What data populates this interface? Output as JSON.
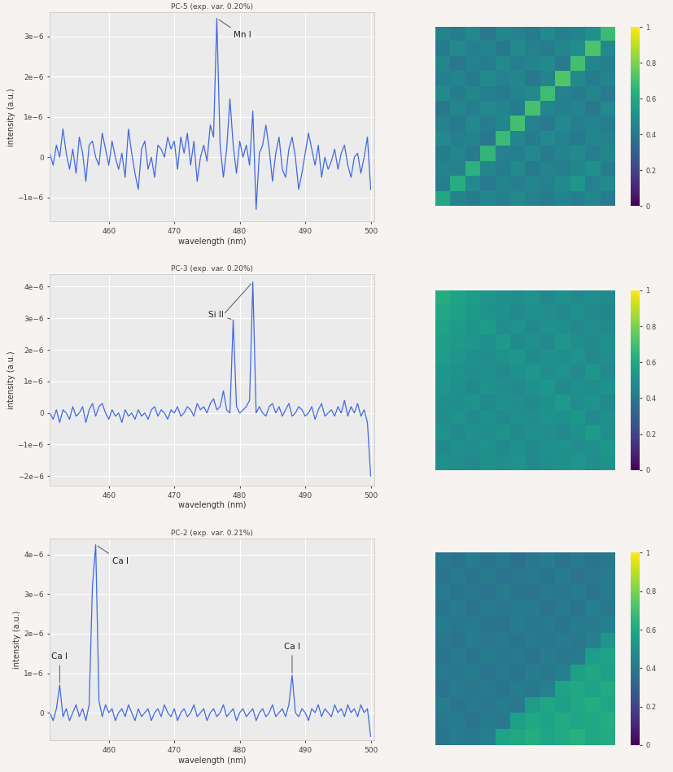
{
  "chart_data": [
    {
      "type": "line",
      "title": "PC-5 (exp. var. 0.20%)",
      "x_label": "wavelength (nm)",
      "y_label": "intensity (a.u.)",
      "color": "#4169e1",
      "grid": true,
      "x": [
        451,
        451.5,
        452,
        452.5,
        453,
        453.5,
        454,
        454.5,
        455,
        455.5,
        456,
        456.5,
        457,
        457.5,
        458,
        458.5,
        459,
        459.5,
        460,
        460.5,
        461,
        461.5,
        462,
        462.5,
        463,
        463.5,
        464,
        464.5,
        465,
        465.5,
        466,
        466.5,
        467,
        467.5,
        468,
        468.5,
        469,
        469.5,
        470,
        470.5,
        471,
        471.5,
        472,
        472.5,
        473,
        473.5,
        474,
        474.5,
        475,
        475.5,
        476,
        476.5,
        477,
        477.5,
        478,
        478.5,
        479,
        479.5,
        480,
        480.5,
        481,
        481.5,
        482,
        482.5,
        483,
        483.5,
        484,
        484.5,
        485,
        485.5,
        486,
        486.5,
        487,
        487.5,
        488,
        488.5,
        489,
        489.5,
        490,
        490.5,
        491,
        491.5,
        492,
        492.5,
        493,
        493.5,
        494,
        494.5,
        495,
        495.5,
        496,
        496.5,
        497,
        497.5,
        498,
        498.5,
        499,
        499.5,
        500
      ],
      "values": [
        1e-07,
        -2e-07,
        3e-07,
        0,
        7e-07,
        1e-07,
        -3e-07,
        2e-07,
        -4e-07,
        5e-07,
        1e-07,
        -6e-07,
        3e-07,
        4e-07,
        0,
        -2e-07,
        6e-07,
        2e-07,
        -2e-07,
        4e-07,
        0,
        -3e-07,
        1e-07,
        -5e-07,
        7e-07,
        1e-07,
        -4e-07,
        -8e-07,
        2e-07,
        4e-07,
        -3e-07,
        0,
        -5e-07,
        3e-07,
        2e-07,
        0,
        5e-07,
        2e-07,
        4e-07,
        -3e-07,
        5e-07,
        1e-07,
        6e-07,
        -2e-07,
        4e-07,
        -6e-07,
        0,
        3e-07,
        -1e-07,
        8e-07,
        5e-07,
        3.45e-06,
        3e-07,
        -5e-07,
        2e-07,
        1.45e-06,
        3e-07,
        -4e-07,
        4e-07,
        0,
        3e-07,
        -2e-07,
        1.15e-06,
        -1.3e-06,
        1e-07,
        3e-07,
        8e-07,
        2e-07,
        -6e-07,
        1e-07,
        5e-07,
        -3e-07,
        -5e-07,
        2e-07,
        5e-07,
        0,
        -8e-07,
        -4e-07,
        1e-07,
        6e-07,
        2e-07,
        -2e-07,
        3e-07,
        -5e-07,
        0,
        -3e-07,
        -1e-07,
        2e-07,
        -3e-07,
        1e-07,
        3e-07,
        -2e-07,
        -5e-07,
        0,
        1e-07,
        -4e-07,
        0,
        5e-07,
        -8e-07
      ],
      "xlim": [
        451,
        500.5
      ],
      "xticks": [
        460,
        470,
        480,
        490,
        500
      ],
      "ylim": [
        -1.6e-06,
        3.6e-06
      ],
      "yticks": [
        {
          "value": -1e-06,
          "label": "−1e−6"
        },
        0,
        {
          "value": 1e-06,
          "label": "1e−6"
        },
        {
          "value": 2e-06,
          "label": "2e−6"
        },
        {
          "value": 3e-06,
          "label": "3e−6"
        }
      ],
      "annotations": [
        {
          "text": "Mn I",
          "x": [
            476.5
          ]
        }
      ]
    },
    {
      "type": "heatmap",
      "tick_labels": false,
      "color_range": [
        0,
        1
      ],
      "color_ticks": [
        0,
        0.2,
        0.4,
        0.6,
        0.8,
        1
      ],
      "cells": [
        [
          0.45,
          0.42,
          0.48,
          0.4,
          0.46,
          0.44,
          0.41,
          0.47,
          0.43,
          0.45,
          0.5,
          0.68
        ],
        [
          0.41,
          0.47,
          0.43,
          0.45,
          0.4,
          0.48,
          0.44,
          0.42,
          0.46,
          0.49,
          0.72,
          0.47
        ],
        [
          0.46,
          0.4,
          0.44,
          0.42,
          0.47,
          0.43,
          0.45,
          0.48,
          0.41,
          0.7,
          0.46,
          0.43
        ],
        [
          0.43,
          0.45,
          0.41,
          0.48,
          0.44,
          0.46,
          0.4,
          0.45,
          0.73,
          0.47,
          0.42,
          0.45
        ],
        [
          0.48,
          0.42,
          0.46,
          0.43,
          0.41,
          0.45,
          0.47,
          0.69,
          0.44,
          0.42,
          0.46,
          0.41
        ],
        [
          0.4,
          0.46,
          0.43,
          0.47,
          0.45,
          0.42,
          0.71,
          0.46,
          0.43,
          0.45,
          0.4,
          0.47
        ],
        [
          0.44,
          0.41,
          0.48,
          0.42,
          0.46,
          0.7,
          0.44,
          0.41,
          0.47,
          0.43,
          0.45,
          0.42
        ],
        [
          0.47,
          0.43,
          0.45,
          0.4,
          0.68,
          0.46,
          0.42,
          0.48,
          0.44,
          0.41,
          0.46,
          0.44
        ],
        [
          0.42,
          0.46,
          0.41,
          0.66,
          0.44,
          0.43,
          0.47,
          0.42,
          0.45,
          0.48,
          0.43,
          0.46
        ],
        [
          0.45,
          0.44,
          0.64,
          0.46,
          0.42,
          0.48,
          0.41,
          0.45,
          0.43,
          0.46,
          0.5,
          0.42
        ],
        [
          0.43,
          0.62,
          0.47,
          0.41,
          0.45,
          0.43,
          0.46,
          0.44,
          0.48,
          0.52,
          0.44,
          0.47
        ],
        [
          0.6,
          0.45,
          0.42,
          0.46,
          0.43,
          0.47,
          0.44,
          0.42,
          0.45,
          0.43,
          0.46,
          0.41
        ]
      ]
    },
    {
      "type": "line",
      "title": "PC-3 (exp. var. 0.20%)",
      "x_label": "wavelength (nm)",
      "y_label": "intensity (a.u.)",
      "color": "#4169e1",
      "grid": true,
      "x": [
        451,
        451.5,
        452,
        452.5,
        453,
        453.5,
        454,
        454.5,
        455,
        455.5,
        456,
        456.5,
        457,
        457.5,
        458,
        458.5,
        459,
        459.5,
        460,
        460.5,
        461,
        461.5,
        462,
        462.5,
        463,
        463.5,
        464,
        464.5,
        465,
        465.5,
        466,
        466.5,
        467,
        467.5,
        468,
        468.5,
        469,
        469.5,
        470,
        470.5,
        471,
        471.5,
        472,
        472.5,
        473,
        473.5,
        474,
        474.5,
        475,
        475.5,
        476,
        476.5,
        477,
        477.5,
        478,
        478.5,
        479,
        479.5,
        480,
        480.5,
        481,
        481.5,
        482,
        482.5,
        483,
        483.5,
        484,
        484.5,
        485,
        485.5,
        486,
        486.5,
        487,
        487.5,
        488,
        488.5,
        489,
        489.5,
        490,
        490.5,
        491,
        491.5,
        492,
        492.5,
        493,
        493.5,
        494,
        494.5,
        495,
        495.5,
        496,
        496.5,
        497,
        497.5,
        498,
        498.5,
        499,
        499.5,
        500
      ],
      "values": [
        0,
        -2e-07,
        1e-07,
        -3e-07,
        1e-07,
        0,
        -2e-07,
        2e-07,
        -1e-07,
        0,
        2e-07,
        -3e-07,
        1e-07,
        3e-07,
        -1e-07,
        2e-07,
        3e-07,
        0,
        -2e-07,
        1e-07,
        -1e-07,
        0,
        -3e-07,
        1e-07,
        -1e-07,
        0,
        -2e-07,
        1e-07,
        -1e-07,
        0,
        -2e-07,
        1e-07,
        2e-07,
        -1e-07,
        1e-07,
        0,
        -2e-07,
        1e-07,
        0,
        2e-07,
        -1e-07,
        0,
        2e-07,
        1e-07,
        -1e-07,
        3e-07,
        1e-07,
        2e-07,
        0,
        3e-07,
        4.5e-07,
        1e-07,
        2e-07,
        7e-07,
        1e-07,
        0,
        2.95e-06,
        2e-07,
        0,
        1e-07,
        2e-07,
        4e-07,
        4.15e-06,
        0,
        2e-07,
        0,
        -1e-07,
        2e-07,
        3e-07,
        0,
        2e-07,
        -1e-07,
        1e-07,
        3e-07,
        -1e-07,
        0,
        2e-07,
        1e-07,
        -1e-07,
        0,
        2e-07,
        -2e-07,
        1e-07,
        3e-07,
        -1e-07,
        0,
        1e-07,
        -1e-07,
        2e-07,
        0,
        4e-07,
        -1e-07,
        2e-07,
        0,
        3e-07,
        -1e-07,
        1e-07,
        -3e-07,
        -2e-06
      ],
      "xlim": [
        451,
        500.5
      ],
      "xticks": [
        460,
        470,
        480,
        490,
        500
      ],
      "ylim": [
        -2.3e-06,
        4.4e-06
      ],
      "yticks": [
        {
          "value": -2e-06,
          "label": "−2e−6"
        },
        {
          "value": -1e-06,
          "label": "−1e−6"
        },
        0,
        {
          "value": 1e-06,
          "label": "1e−6"
        },
        {
          "value": 2e-06,
          "label": "2e−6"
        },
        {
          "value": 3e-06,
          "label": "3e−6"
        },
        {
          "value": 4e-06,
          "label": "4e−6"
        }
      ],
      "annotations": [
        {
          "text": "Si II",
          "x": [
            479,
            482
          ]
        }
      ]
    },
    {
      "type": "heatmap",
      "tick_labels": false,
      "color_range": [
        0,
        1
      ],
      "color_ticks": [
        0,
        0.2,
        0.4,
        0.6,
        0.8,
        1
      ],
      "cells": [
        [
          0.62,
          0.58,
          0.55,
          0.52,
          0.5,
          0.49,
          0.51,
          0.48,
          0.5,
          0.47,
          0.49,
          0.48
        ],
        [
          0.6,
          0.57,
          0.54,
          0.51,
          0.5,
          0.48,
          0.5,
          0.49,
          0.47,
          0.5,
          0.48,
          0.46
        ],
        [
          0.58,
          0.55,
          0.53,
          0.55,
          0.49,
          0.51,
          0.48,
          0.5,
          0.49,
          0.47,
          0.49,
          0.48
        ],
        [
          0.56,
          0.54,
          0.52,
          0.5,
          0.54,
          0.48,
          0.5,
          0.47,
          0.52,
          0.49,
          0.48,
          0.5
        ],
        [
          0.55,
          0.52,
          0.5,
          0.49,
          0.51,
          0.53,
          0.48,
          0.5,
          0.49,
          0.51,
          0.47,
          0.49
        ],
        [
          0.53,
          0.51,
          0.49,
          0.5,
          0.48,
          0.5,
          0.52,
          0.49,
          0.51,
          0.48,
          0.53,
          0.47
        ],
        [
          0.52,
          0.5,
          0.48,
          0.51,
          0.49,
          0.47,
          0.5,
          0.53,
          0.48,
          0.5,
          0.49,
          0.51
        ],
        [
          0.5,
          0.49,
          0.51,
          0.48,
          0.5,
          0.49,
          0.48,
          0.5,
          0.54,
          0.49,
          0.51,
          0.48
        ],
        [
          0.49,
          0.51,
          0.48,
          0.5,
          0.47,
          0.5,
          0.49,
          0.51,
          0.5,
          0.53,
          0.48,
          0.5
        ],
        [
          0.51,
          0.48,
          0.5,
          0.49,
          0.51,
          0.48,
          0.5,
          0.49,
          0.48,
          0.5,
          0.54,
          0.49
        ],
        [
          0.48,
          0.5,
          0.49,
          0.51,
          0.48,
          0.5,
          0.47,
          0.5,
          0.51,
          0.49,
          0.5,
          0.53
        ],
        [
          0.5,
          0.49,
          0.47,
          0.5,
          0.49,
          0.51,
          0.48,
          0.49,
          0.5,
          0.52,
          0.49,
          0.51
        ]
      ]
    },
    {
      "type": "line",
      "title": "PC-2 (exp. var. 0.21%)",
      "x_label": "wavelength (nm)",
      "y_label": "intensity (a.u.)",
      "color": "#4169e1",
      "grid": true,
      "x": [
        451,
        451.5,
        452,
        452.5,
        453,
        453.5,
        454,
        454.5,
        455,
        455.5,
        456,
        456.5,
        457,
        457.5,
        458,
        458.5,
        459,
        459.5,
        460,
        460.5,
        461,
        461.5,
        462,
        462.5,
        463,
        463.5,
        464,
        464.5,
        465,
        465.5,
        466,
        466.5,
        467,
        467.5,
        468,
        468.5,
        469,
        469.5,
        470,
        470.5,
        471,
        471.5,
        472,
        472.5,
        473,
        473.5,
        474,
        474.5,
        475,
        475.5,
        476,
        476.5,
        477,
        477.5,
        478,
        478.5,
        479,
        479.5,
        480,
        480.5,
        481,
        481.5,
        482,
        482.5,
        483,
        483.5,
        484,
        484.5,
        485,
        485.5,
        486,
        486.5,
        487,
        487.5,
        488,
        488.5,
        489,
        489.5,
        490,
        490.5,
        491,
        491.5,
        492,
        492.5,
        493,
        493.5,
        494,
        494.5,
        495,
        495.5,
        496,
        496.5,
        497,
        497.5,
        498,
        498.5,
        499,
        499.5,
        500
      ],
      "values": [
        0,
        -2e-07,
        1e-07,
        7e-07,
        -1e-07,
        1e-07,
        -2e-07,
        0,
        2e-07,
        -1e-07,
        1e-07,
        -2e-07,
        2e-07,
        3.2e-06,
        4.25e-06,
        3e-07,
        -1e-07,
        2e-07,
        0,
        1e-07,
        -2e-07,
        0,
        1e-07,
        -1e-07,
        2e-07,
        0,
        -2e-07,
        1e-07,
        -1e-07,
        0,
        1e-07,
        -2e-07,
        0,
        1e-07,
        -1e-07,
        2e-07,
        0,
        -1e-07,
        1e-07,
        -2e-07,
        0,
        1e-07,
        -1e-07,
        0,
        2e-07,
        -1e-07,
        0,
        1e-07,
        -2e-07,
        0,
        1e-07,
        -1e-07,
        0,
        2e-07,
        -1e-07,
        0,
        1e-07,
        -2e-07,
        0,
        1e-07,
        -1e-07,
        0,
        1e-07,
        -2e-07,
        0,
        1e-07,
        -1e-07,
        0,
        2e-07,
        -1e-07,
        0,
        1e-07,
        -1e-07,
        2e-07,
        9.5e-07,
        0,
        -1e-07,
        1e-07,
        0,
        -2e-07,
        1e-07,
        0,
        2e-07,
        -1e-07,
        1e-07,
        0,
        -1e-07,
        2e-07,
        0,
        1e-07,
        -1e-07,
        2e-07,
        0,
        1e-07,
        -1e-07,
        2e-07,
        0,
        1e-07,
        -6e-07
      ],
      "xlim": [
        451,
        500.5
      ],
      "xticks": [
        460,
        470,
        480,
        490,
        500
      ],
      "ylim": [
        -7e-07,
        4.4e-06
      ],
      "yticks": [
        0,
        {
          "value": 1e-06,
          "label": "1e−6"
        },
        {
          "value": 2e-06,
          "label": "2e−6"
        },
        {
          "value": 3e-06,
          "label": "3e−6"
        },
        {
          "value": 4e-06,
          "label": "4e−6"
        }
      ],
      "annotations": [
        {
          "text": "Ca I",
          "x": [
            452.5
          ]
        },
        {
          "text": "Ca I",
          "x": [
            458
          ]
        },
        {
          "text": "Ca I",
          "x": [
            488
          ]
        }
      ]
    },
    {
      "type": "heatmap",
      "tick_labels": false,
      "color_range": [
        0,
        1
      ],
      "color_ticks": [
        0,
        0.2,
        0.4,
        0.6,
        0.8,
        1
      ],
      "cells": [
        [
          0.4,
          0.38,
          0.42,
          0.39,
          0.41,
          0.37,
          0.4,
          0.42,
          0.38,
          0.41,
          0.39,
          0.4
        ],
        [
          0.38,
          0.41,
          0.39,
          0.42,
          0.38,
          0.4,
          0.41,
          0.39,
          0.42,
          0.38,
          0.4,
          0.41
        ],
        [
          0.41,
          0.39,
          0.4,
          0.38,
          0.42,
          0.39,
          0.38,
          0.41,
          0.4,
          0.42,
          0.39,
          0.42
        ],
        [
          0.39,
          0.42,
          0.38,
          0.41,
          0.4,
          0.41,
          0.42,
          0.38,
          0.41,
          0.39,
          0.43,
          0.4
        ],
        [
          0.42,
          0.4,
          0.41,
          0.39,
          0.38,
          0.42,
          0.4,
          0.41,
          0.39,
          0.42,
          0.41,
          0.44
        ],
        [
          0.4,
          0.38,
          0.42,
          0.4,
          0.41,
          0.39,
          0.41,
          0.4,
          0.42,
          0.4,
          0.43,
          0.52
        ],
        [
          0.39,
          0.41,
          0.39,
          0.42,
          0.4,
          0.41,
          0.38,
          0.42,
          0.4,
          0.41,
          0.56,
          0.58
        ],
        [
          0.41,
          0.4,
          0.42,
          0.38,
          0.41,
          0.39,
          0.42,
          0.4,
          0.43,
          0.57,
          0.59,
          0.57
        ],
        [
          0.38,
          0.42,
          0.4,
          0.41,
          0.39,
          0.42,
          0.4,
          0.44,
          0.58,
          0.6,
          0.58,
          0.61
        ],
        [
          0.42,
          0.39,
          0.41,
          0.4,
          0.42,
          0.4,
          0.55,
          0.59,
          0.57,
          0.6,
          0.62,
          0.59
        ],
        [
          0.4,
          0.41,
          0.38,
          0.42,
          0.4,
          0.57,
          0.6,
          0.58,
          0.61,
          0.59,
          0.6,
          0.62
        ],
        [
          0.39,
          0.42,
          0.4,
          0.43,
          0.58,
          0.6,
          0.62,
          0.59,
          0.61,
          0.63,
          0.6,
          0.61
        ]
      ]
    }
  ]
}
